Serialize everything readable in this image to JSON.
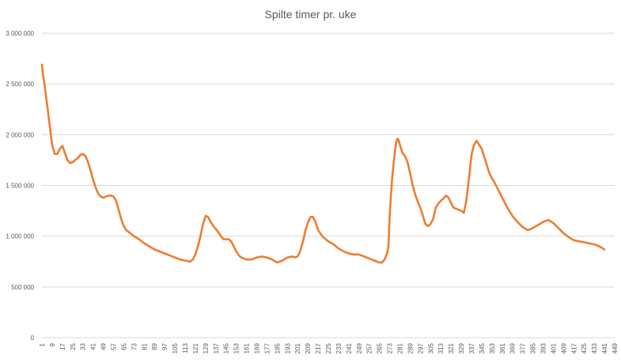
{
  "chart_data": {
    "type": "line",
    "title": "Spilte timer pr. uke",
    "xlabel": "",
    "ylabel": "",
    "ylim": [
      0,
      3000000
    ],
    "yticks": [
      {
        "value": 0,
        "label": "0"
      },
      {
        "value": 500000,
        "label": "500 000"
      },
      {
        "value": 1000000,
        "label": "1 000 000"
      },
      {
        "value": 1500000,
        "label": "1 500 000"
      },
      {
        "value": 2000000,
        "label": "2 000 000"
      },
      {
        "value": 2500000,
        "label": "2 500 000"
      },
      {
        "value": 3000000,
        "label": "3 000 000"
      }
    ],
    "xlim": [
      1,
      449
    ],
    "xticks": [
      1,
      9,
      17,
      25,
      33,
      41,
      49,
      57,
      65,
      73,
      81,
      89,
      97,
      105,
      113,
      121,
      129,
      137,
      145,
      153,
      161,
      169,
      177,
      185,
      193,
      201,
      209,
      217,
      225,
      233,
      241,
      249,
      257,
      265,
      273,
      281,
      289,
      297,
      305,
      313,
      321,
      329,
      337,
      345,
      353,
      361,
      369,
      377,
      385,
      393,
      401,
      409,
      417,
      425,
      433,
      441,
      449
    ],
    "grid": true,
    "legend": "none",
    "color": "#ED7D31",
    "series": [
      {
        "x": [
          1,
          2,
          3,
          5,
          7,
          9,
          11,
          13,
          15,
          17,
          19,
          21,
          23,
          25,
          27,
          29,
          31,
          33,
          35,
          37,
          39,
          41,
          43,
          45,
          47,
          49,
          51,
          53,
          55,
          57,
          59,
          61,
          63,
          65,
          67,
          69,
          73,
          77,
          81,
          85,
          89,
          93,
          97,
          101,
          105,
          109,
          113,
          117,
          119,
          121,
          123,
          125,
          127,
          129,
          131,
          133,
          135,
          137,
          139,
          141,
          143,
          145,
          147,
          149,
          151,
          153,
          155,
          157,
          161,
          165,
          169,
          173,
          177,
          181,
          185,
          189,
          193,
          197,
          199,
          201,
          203,
          205,
          207,
          209,
          211,
          213,
          215,
          217,
          221,
          225,
          229,
          233,
          237,
          241,
          245,
          249,
          253,
          257,
          261,
          265,
          267,
          269,
          270,
          271,
          272,
          273,
          274,
          275,
          276,
          277,
          278,
          279,
          280,
          281,
          283,
          285,
          287,
          289,
          291,
          293,
          295,
          297,
          299,
          301,
          303,
          305,
          307,
          309,
          311,
          313,
          315,
          317,
          319,
          321,
          323,
          325,
          327,
          329,
          331,
          333,
          335,
          337,
          339,
          341,
          343,
          345,
          347,
          349,
          351,
          353,
          355,
          357,
          361,
          365,
          369,
          373,
          377,
          381,
          385,
          389,
          393,
          397,
          401,
          405,
          409,
          413,
          417,
          421,
          425,
          429,
          433,
          437,
          441
        ],
        "values": [
          2690000,
          2580000,
          2500000,
          2300000,
          2100000,
          1900000,
          1810000,
          1810000,
          1860000,
          1890000,
          1820000,
          1750000,
          1720000,
          1730000,
          1750000,
          1770000,
          1800000,
          1810000,
          1790000,
          1730000,
          1650000,
          1560000,
          1480000,
          1420000,
          1390000,
          1380000,
          1390000,
          1400000,
          1400000,
          1390000,
          1350000,
          1260000,
          1170000,
          1100000,
          1060000,
          1040000,
          1000000,
          970000,
          930000,
          900000,
          870000,
          850000,
          830000,
          810000,
          790000,
          770000,
          760000,
          750000,
          770000,
          820000,
          900000,
          1000000,
          1120000,
          1200000,
          1190000,
          1140000,
          1100000,
          1070000,
          1040000,
          1000000,
          970000,
          970000,
          970000,
          950000,
          900000,
          850000,
          810000,
          790000,
          770000,
          770000,
          790000,
          800000,
          790000,
          770000,
          740000,
          760000,
          790000,
          800000,
          790000,
          800000,
          850000,
          940000,
          1050000,
          1130000,
          1190000,
          1190000,
          1140000,
          1060000,
          990000,
          950000,
          920000,
          880000,
          850000,
          830000,
          820000,
          820000,
          800000,
          780000,
          760000,
          740000,
          740000,
          770000,
          800000,
          830000,
          900000,
          1200000,
          1400000,
          1580000,
          1700000,
          1820000,
          1920000,
          1960000,
          1950000,
          1900000,
          1820000,
          1790000,
          1730000,
          1620000,
          1500000,
          1410000,
          1340000,
          1280000,
          1200000,
          1120000,
          1100000,
          1120000,
          1170000,
          1280000,
          1320000,
          1350000,
          1370000,
          1400000,
          1380000,
          1330000,
          1280000,
          1270000,
          1260000,
          1250000,
          1230000,
          1350000,
          1570000,
          1800000,
          1900000,
          1940000,
          1900000,
          1860000,
          1780000,
          1700000,
          1620000,
          1570000,
          1530000,
          1480000,
          1380000,
          1280000,
          1200000,
          1140000,
          1090000,
          1060000,
          1080000,
          1110000,
          1140000,
          1160000,
          1130000,
          1080000,
          1030000,
          990000,
          960000,
          950000,
          940000,
          930000,
          920000,
          900000,
          870000
        ]
      }
    ]
  }
}
